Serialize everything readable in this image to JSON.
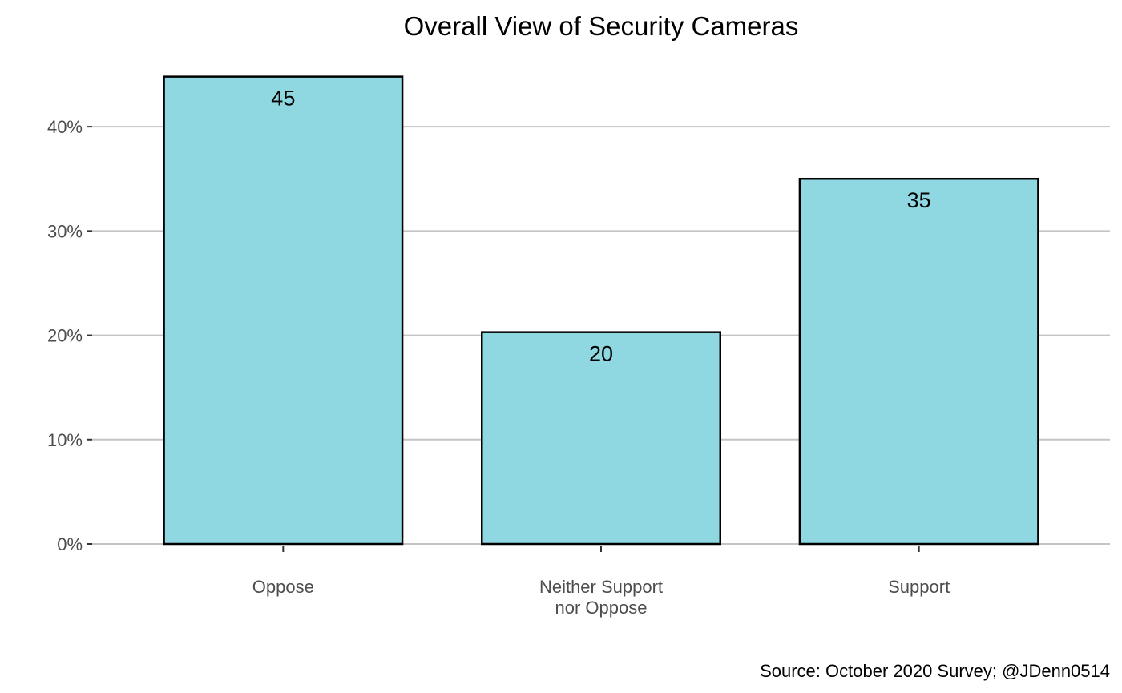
{
  "chart_data": {
    "type": "bar",
    "title": "Overall View of Security Cameras",
    "caption": "Source: October 2020 Survey; @JDenn0514",
    "xlabel": "",
    "ylabel": "",
    "categories": [
      [
        "Oppose"
      ],
      [
        "Neither Support",
        "nor Oppose"
      ],
      [
        "Support"
      ]
    ],
    "values": [
      44.8,
      20.3,
      35.0
    ],
    "labels": [
      "45",
      "20",
      "35"
    ],
    "ylim": [
      0,
      46
    ],
    "yticks": [
      0,
      10,
      20,
      30,
      40
    ],
    "ytick_labels": [
      "0%",
      "10%",
      "20%",
      "30%",
      "40%"
    ],
    "grid": "horizontal",
    "colors": {
      "bar_fill": "#8fd8e1",
      "bar_stroke": "#000000",
      "grid": "#c4c4c4",
      "tick": "#333333"
    }
  }
}
